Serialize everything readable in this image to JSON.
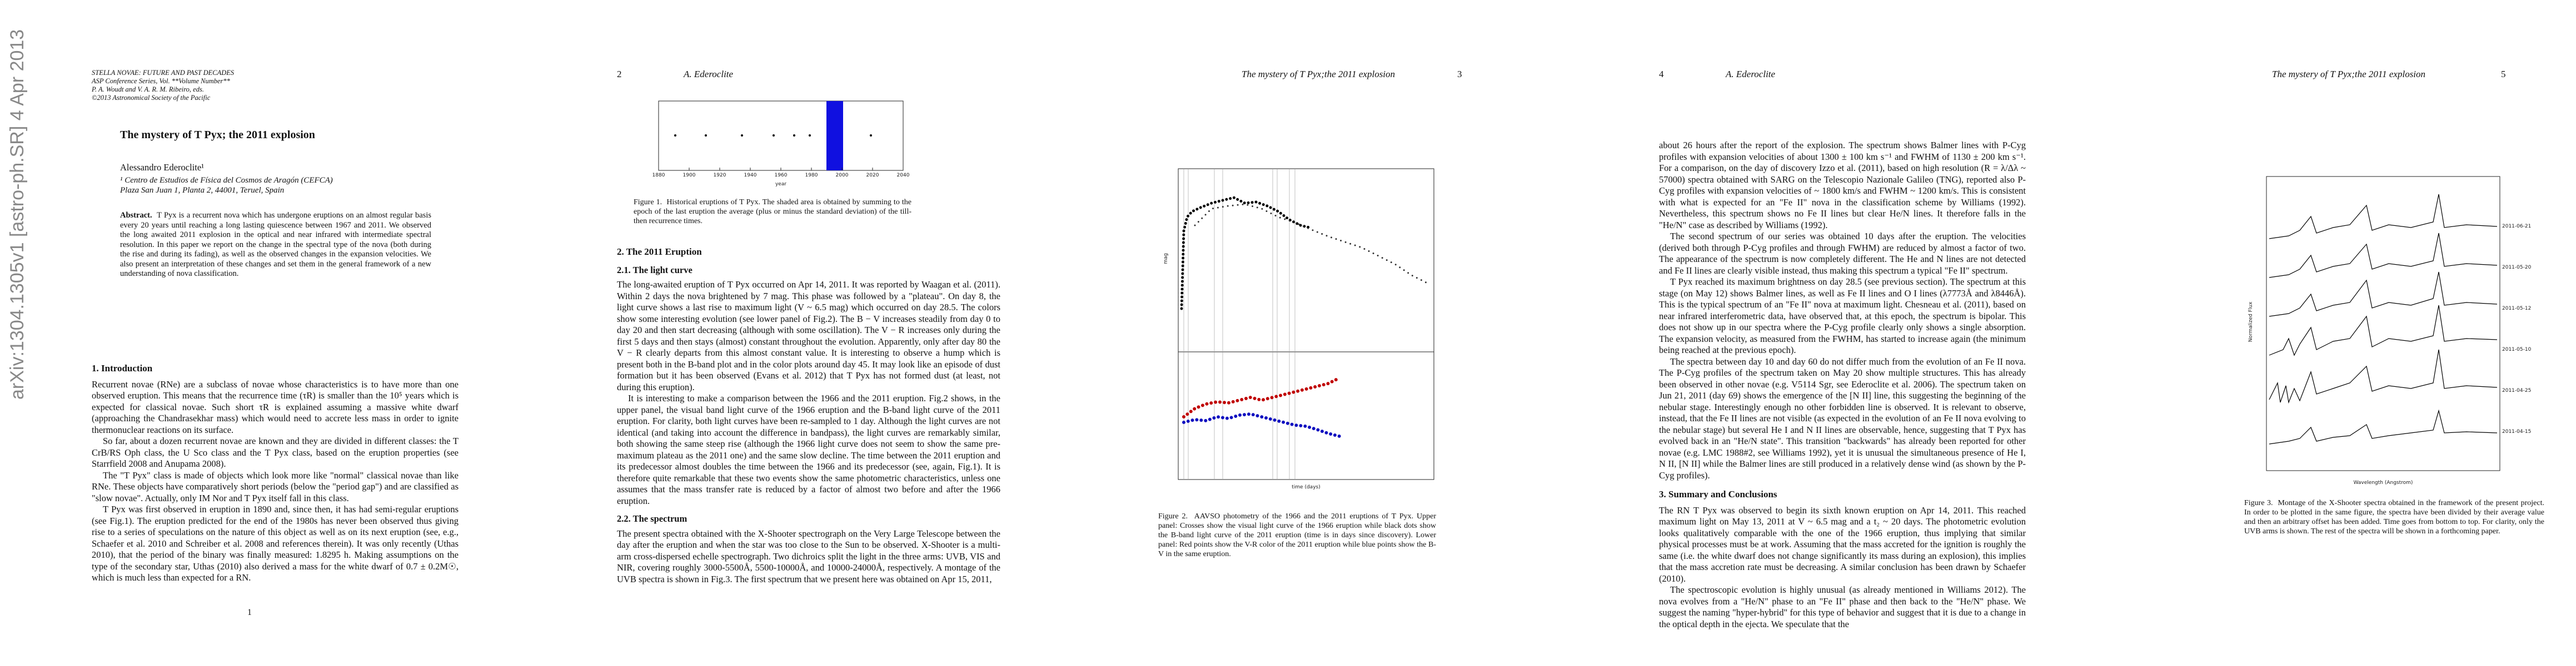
{
  "arxiv_stamp": "arXiv:1304.1305v1  [astro-ph.SR]  4 Apr 2013",
  "pages": [
    {
      "number": "1",
      "header": [
        "STELLA NOVAE: FUTURE AND PAST DECADES",
        "ASP Conference Series, Vol. **Volume Number**",
        "P. A. Woudt and V. A. R. M. Ribeiro, eds.",
        "©2013 Astronomical Society of the Pacific"
      ],
      "title": "The mystery of T Pyx; the 2011 explosion",
      "author": "Alessandro Ederoclite¹",
      "affiliation": [
        "¹ Centro de Estudios de Física del Cosmos de Aragón (CEFCA)",
        "Plaza San Juan 1, Planta 2, 44001, Teruel, Spain"
      ],
      "abstract_label": "Abstract.",
      "abstract": "T Pyx is a recurrent nova which has undergone eruptions on an almost regular basis every 20 years until reaching a long lasting quiescence between 1967 and 2011. We observed the long awaited 2011 explosion in the optical and near infrared with intermediate spectral resolution. In this paper we report on the change in the spectral type of the nova (both during the rise and during its fading), as well as the observed changes in the expansion velocities. We also present an interpretation of these changes and set them in the general framework of a new understanding of nova classification.",
      "section_heading": "1.  Introduction",
      "paragraphs": [
        "Recurrent novae (RNe) are a subclass of novae whose characteristics is to have more than one observed eruption. This means that the recurrence time (τR) is smaller than the 10⁵ years which is expected for classical novae. Such short τR is explained assuming a massive white dwarf (approaching the Chandrasekhar mass) which would need to accrete less mass in order to ignite thermonuclear reactions on its surface.",
        "So far, about a dozen recurrent novae are known and they are divided in different classes: the T CrB/RS Oph class, the U Sco class and the T Pyx class, based on the eruption properties (see Starrfield 2008 and Anupama 2008).",
        "The \"T Pyx\" class is made of objects which look more like \"normal\" classical novae than like RNe. These objects have comparatively short periods (below the \"period gap\") and are classified as \"slow novae\". Actually, only IM Nor and T Pyx itself fall in this class.",
        "T Pyx was first observed in eruption in 1890 and, since then, it has had semi-regular eruptions (see Fig.1). The eruption predicted for the end of the 1980s has never been observed thus giving rise to a series of speculations on the nature of this object as well as on its next eruption (see, e.g., Schaefer et al. 2010 and Schreiber et al. 2008 and references therein). It was only recently (Uthas 2010), that the period of the binary was finally measured: 1.8295 h. Making assumptions on the type of the secondary star, Uthas (2010) also derived a mass for the white dwarf of 0.7 ± 0.2M☉, which is much less than expected for a RN."
      ]
    },
    {
      "number": "2",
      "running_head": "A. Ederoclite",
      "figure": {
        "xticks": [
          "1880",
          "1900",
          "1920",
          "1940",
          "1960",
          "1980",
          "2000",
          "2020",
          "2040"
        ],
        "xlabel": "year",
        "caption_label": "Figure 1.",
        "caption": "Historical eruptions of T Pyx. The shaded area is obtained by summing to the epoch of the last eruption the average (plus or minus the standard deviation) of the till-then recurrence times."
      },
      "section_heading": "2.  The 2011 Eruption",
      "subsection1": "2.1.  The light curve",
      "paragraphs1": [
        "The long-awaited eruption of T Pyx occurred on Apr 14, 2011. It was reported by Waagan et al. (2011). Within 2 days the nova brightened by 7 mag. This phase was followed by a \"plateau\". On day 8, the light curve shows a last rise to maximum light (V ~ 6.5 mag) which occurred on day 28.5. The colors show some interesting evolution (see lower panel of Fig.2). The B − V increases steadily from day 0 to day 20 and then start decreasing (although with some oscillation). The V − R increases only during the first 5 days and then stays (almost) constant throughout the evolution. Apparently, only after day 80 the V − R clearly departs from this almost constant value. It is interesting to observe a hump which is present both in the B-band plot and in the color plots around day 45. It may look like an episode of dust formation but it has been observed (Evans et al. 2012) that T Pyx has not formed dust (at least, not during this eruption).",
        "It is interesting to make a comparison between the 1966 and the 2011 eruption. Fig.2 shows, in the upper panel, the visual band light curve of the 1966 eruption and the B-band light curve of the 2011 eruption. For clarity, both light curves have been re-sampled to 1 day. Although the light curves are not identical (and taking into account the difference in bandpass), the light curves are remarkably similar, both showing the same steep rise (although the 1966 light curve does not seem to show the same pre-maximum plateau as the 2011 one) and the same slow decline. The time between the 2011 eruption and its predecessor almost doubles the time between the 1966 and its predecessor (see, again, Fig.1). It is therefore quite remarkable that these two events show the same photometric characteristics, unless one assumes that the mass transfer rate is reduced by a factor of almost two before and after the 1966 eruption."
      ],
      "subsection2": "2.2.  The spectrum",
      "paragraphs2": [
        "The present spectra obtained with the X-Shooter spectrograph on the Very Large Telescope between the day after the eruption and when the star was too close to the Sun to be observed. X-Shooter is a multi-arm cross-dispersed echelle spectrograph. Two dichroics split the light in the three arms: UVB, VIS and NIR, covering roughly 3000-5500Å, 5500-10000Å, and 10000-24000Å, respectively. A montage of the UVB spectra is shown in Fig.3. The first spectrum that we present here was obtained on Apr 15, 2011,"
      ]
    },
    {
      "number": "3",
      "running_head": "The mystery of T Pyx;the 2011 explosion",
      "figure": {
        "ylabel": "mag",
        "xlabel": "time (days)",
        "caption_label": "Figure 2.",
        "caption": "AAVSO photometry of the 1966 and the 2011 eruptions of T Pyx. Upper panel: Crosses show the visual light curve of the 1966 eruption while black dots show the B-band light curve of the 2011 eruption (time is in days since discovery). Lower panel: Red points show the V-R color of the 2011 eruption while blue points show the B-V in the same eruption."
      }
    },
    {
      "number": "4",
      "running_head": "A. Ederoclite",
      "paragraphs1": [
        "about 26 hours after the report of the explosion. The spectrum shows Balmer lines with P-Cyg profiles with expansion velocities of about 1300 ± 100 km s⁻¹ and FWHM of 1130 ± 200 km s⁻¹. For a comparison, on the day of discovery Izzo et al. (2011), based on high resolution (R = λ/Δλ ~ 57000) spectra obtained with SARG on the Telescopio Nazionale Galileo (TNG), reported also P-Cyg profiles with expansion velocities of ~ 1800 km/s and FWHM ~ 1200 km/s. This is consistent with what is expected for an \"Fe II\" nova in the classification scheme by Williams (1992). Nevertheless, this spectrum shows no Fe II lines but clear He/N lines. It therefore falls in the \"He/N\" case as described by Williams (1992).",
        "The second spectrum of our series was obtained 10 days after the eruption. The velocities (derived both through P-Cyg profiles and through FWHM) are reduced by almost a factor of two. The appearance of the spectrum is now completely different. The He and N lines are not detected and Fe II lines are clearly visible instead, thus making this spectrum a typical \"Fe II\" spectrum.",
        "T Pyx reached its maximum brightness on day 28.5 (see previous section). The spectrum at this stage (on May 12) shows Balmer lines, as well as Fe II lines and O I lines (λ7773Å and λ8446Å). This is the typical spectrum of an \"Fe II\" nova at maximum light. Chesneau et al. (2011), based on near infrared interferometric data, have observed that, at this epoch, the spectrum is bipolar. This does not show up in our spectra where the P-Cyg profile clearly only shows a single absorption. The expansion velocity, as measured from the FWHM, has started to increase again (the minimum being reached at the previous epoch).",
        "The spectra between day 10 and day 60 do not differ much from the evolution of an Fe II nova. The P-Cyg profiles of the spectrum taken on May 20 show multiple structures. This has already been observed in other novae (e.g. V5114 Sgr, see Ederoclite et al. 2006). The spectrum taken on Jun 21, 2011 (day 69) shows the emergence of the [N II] line, this suggesting the beginning of the nebular stage. Interestingly enough no other forbidden line is observed. It is relevant to observe, instead, that the Fe II lines are not visible (as expected in the evolution of an Fe II nova evolving to the nebular stage) but several He I and N II lines are observable, hence, suggesting that T Pyx has evolved back in an \"He/N state\". This transition \"backwards\" has already been reported for other novae (e.g. LMC 1988#2, see Williams 1992), yet it is unusual the simultaneous presence of He I, N II, [N II] while the Balmer lines are still produced in a relatively dense wind (as shown by the P-Cyg profiles)."
      ],
      "section_heading": "3.  Summary and Conclusions",
      "paragraphs2": [
        "The RN T Pyx was observed to begin its sixth known eruption on Apr 14, 2011. This reached maximum light on May 13, 2011 at V ~ 6.5 mag and a t₂ ~ 20 days. The photometric evolution looks qualitatively comparable with the one of the 1966 eruption, thus implying that similar physical processes must be at work. Assuming that the mass accreted for the ignition is roughly the same (i.e. the white dwarf does not change significantly its mass during an explosion), this implies that the mass accretion rate must be decreasing. A similar conclusion has been drawn by Schaefer (2010).",
        "The spectroscopic evolution is highly unusual (as already mentioned in Williams 2012). The nova evolves from a \"He/N\" phase to an \"Fe II\" phase and then back to the \"He/N\" phase. We suggest the naming \"hyper-hybrid\" for this type of behavior and suggest that it is due to a change in the optical depth in the ejecta. We speculate that the"
      ]
    },
    {
      "number": "5",
      "running_head": "The mystery of T Pyx;the 2011 explosion",
      "figure": {
        "ylabel": "Normalized Flux",
        "xlabel": "Wavelength (Angstrom)",
        "dates": [
          "2011-06-21",
          "2011-05-20",
          "2011-05-12",
          "2011-05-10",
          "2011-04-25",
          "2011-04-15"
        ],
        "caption_label": "Figure 3.",
        "caption": "Montage of the X-Shooter spectra obtained in the framework of the present project. In order to be plotted in the same figure, the spectra have been divided by their average value and then an arbitrary offset has been added. Time goes from bottom to top. For clarity, only the UVB arms is shown. The rest of the spectra will be shown in a forthcoming paper."
      }
    }
  ]
}
